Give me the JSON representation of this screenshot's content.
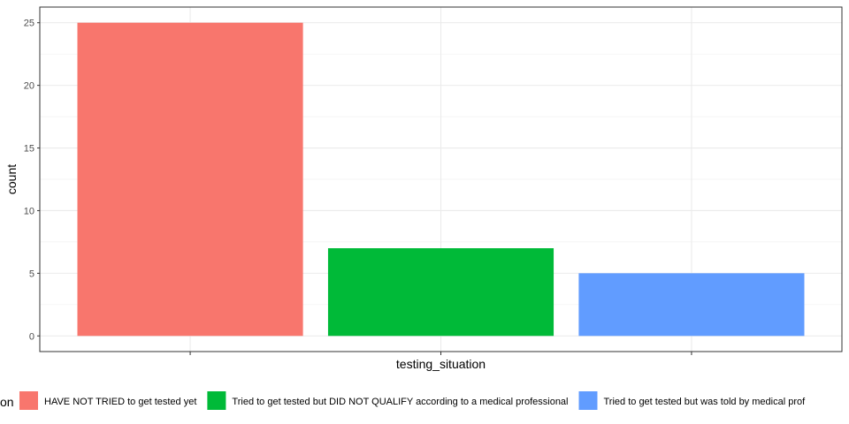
{
  "chart_data": {
    "type": "bar",
    "xlabel": "testing_situation",
    "ylabel": "count",
    "ylim": [
      -1.25,
      26.25
    ],
    "yticks": [
      0,
      5,
      10,
      15,
      20,
      25
    ],
    "grid": true,
    "legend_position": "bottom",
    "legend_title": "on",
    "categories": [
      "HAVE NOT TRIED to get tested yet",
      "Tried to get tested but DID NOT QUALIFY according to a medical professional",
      "Tried to get tested but was told by medical prof"
    ],
    "values": [
      25,
      7,
      5
    ],
    "colors": [
      "#F8766D",
      "#00BA38",
      "#619CFF"
    ]
  }
}
